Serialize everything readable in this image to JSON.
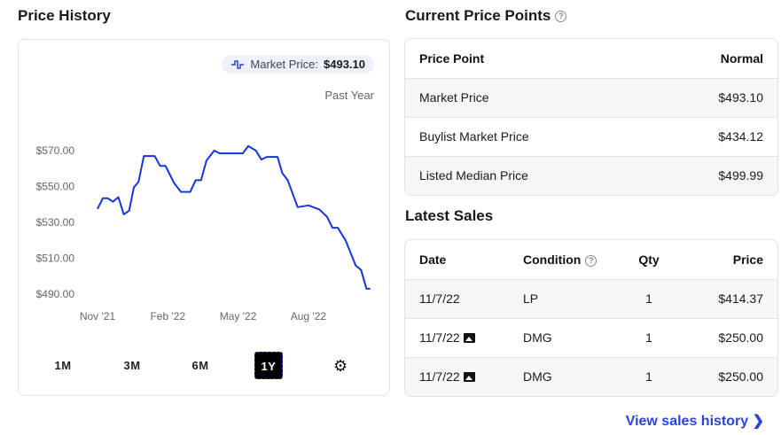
{
  "price_history": {
    "title": "Price History",
    "badge_label": "Market Price:",
    "badge_value": "$493.10",
    "badge_icon": "step-line-icon",
    "period_label": "Past Year",
    "ranges": [
      "1M",
      "3M",
      "6M",
      "1Y"
    ],
    "active_range": "1Y",
    "settings_icon": "gear-icon"
  },
  "chart_data": {
    "type": "line",
    "title": "",
    "xlabel": "",
    "ylabel": "",
    "x_ticks": [
      "Nov '21",
      "Feb '22",
      "May '22",
      "Aug '22"
    ],
    "y_ticks": [
      "$570.00",
      "$550.00",
      "$530.00",
      "$510.00",
      "$490.00"
    ],
    "ylim": [
      490,
      570
    ],
    "grid": false,
    "color": "#1537d9",
    "series": [
      {
        "points": [
          [
            "2021-11-01",
            537
          ],
          [
            "2021-11-08",
            543
          ],
          [
            "2021-11-14",
            543
          ],
          [
            "2021-11-21",
            541
          ],
          [
            "2021-11-28",
            543.6
          ],
          [
            "2021-12-05",
            534
          ],
          [
            "2021-12-12",
            536
          ],
          [
            "2021-12-18",
            549
          ],
          [
            "2021-12-24",
            552
          ],
          [
            "2021-12-31",
            566.5
          ],
          [
            "2022-01-14",
            566.5
          ],
          [
            "2022-01-21",
            561
          ],
          [
            "2022-01-28",
            561
          ],
          [
            "2022-02-08",
            551.5
          ],
          [
            "2022-02-17",
            546.5
          ],
          [
            "2022-03-01",
            546.5
          ],
          [
            "2022-03-08",
            553
          ],
          [
            "2022-03-15",
            553
          ],
          [
            "2022-03-22",
            564
          ],
          [
            "2022-04-01",
            569.5
          ],
          [
            "2022-04-08",
            568
          ],
          [
            "2022-05-08",
            568
          ],
          [
            "2022-05-15",
            572
          ],
          [
            "2022-05-25",
            569.5
          ],
          [
            "2022-06-01",
            564.5
          ],
          [
            "2022-06-08",
            566
          ],
          [
            "2022-06-22",
            566
          ],
          [
            "2022-06-28",
            557
          ],
          [
            "2022-07-05",
            553
          ],
          [
            "2022-07-18",
            538
          ],
          [
            "2022-08-01",
            539
          ],
          [
            "2022-08-15",
            536.7
          ],
          [
            "2022-08-25",
            532.6
          ],
          [
            "2022-09-01",
            526.5
          ],
          [
            "2022-09-08",
            526.5
          ],
          [
            "2022-09-18",
            519.5
          ],
          [
            "2022-10-01",
            505.5
          ],
          [
            "2022-10-08",
            503
          ],
          [
            "2022-10-15",
            492.5
          ],
          [
            "2022-10-20",
            492.5
          ]
        ]
      }
    ]
  },
  "price_points": {
    "title": "Current Price Points",
    "headers": [
      "Price Point",
      "Normal"
    ],
    "rows": [
      [
        "Market Price",
        "$493.10"
      ],
      [
        "Buylist Market Price",
        "$434.12"
      ],
      [
        "Listed Median Price",
        "$499.99"
      ]
    ]
  },
  "latest_sales": {
    "title": "Latest Sales",
    "headers": [
      "Date",
      "Condition",
      "Qty",
      "Price"
    ],
    "rows": [
      {
        "date": "11/7/22",
        "has_image": false,
        "condition": "LP",
        "qty": "1",
        "price": "$414.37"
      },
      {
        "date": "11/7/22",
        "has_image": true,
        "condition": "DMG",
        "qty": "1",
        "price": "$250.00"
      },
      {
        "date": "11/7/22",
        "has_image": true,
        "condition": "DMG",
        "qty": "1",
        "price": "$250.00"
      }
    ],
    "link": "View sales history"
  }
}
